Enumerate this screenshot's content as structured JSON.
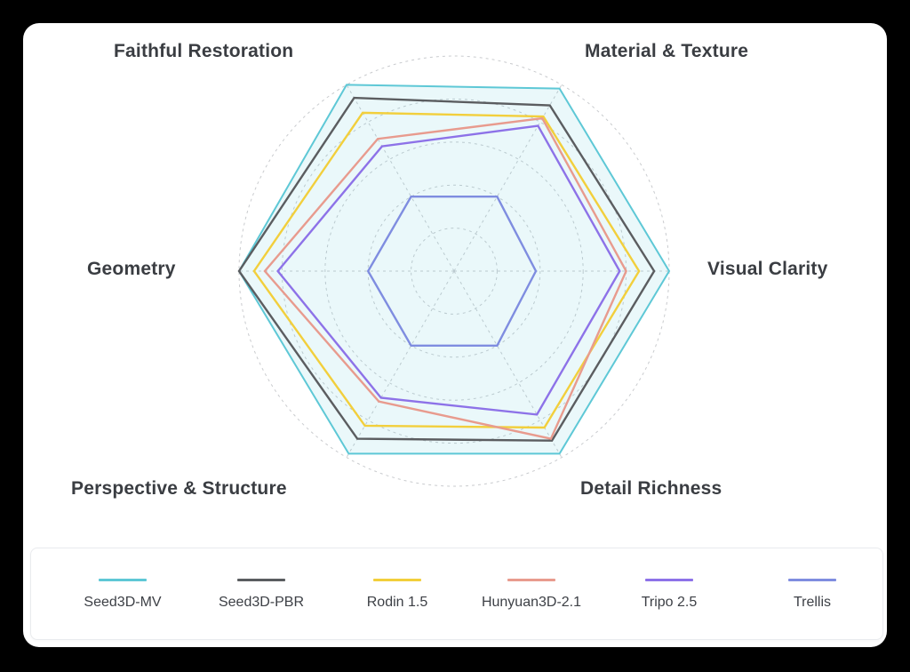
{
  "chart_data": {
    "type": "radar",
    "axes": [
      "Visual Clarity",
      "Detail Richness",
      "Perspective & Structure",
      "Geometry",
      "Faithful Restoration",
      "Material & Texture"
    ],
    "rmax": 1.0,
    "grid_levels": [
      0.2,
      0.4,
      0.6,
      0.8,
      1.0
    ],
    "series": [
      {
        "name": "Seed3D-MV",
        "color": "#5ec8d6",
        "fill": true,
        "values": [
          1.0,
          0.98,
          0.98,
          1.0,
          1.0,
          0.98
        ]
      },
      {
        "name": "Seed3D-PBR",
        "color": "#5b5d60",
        "values": [
          0.93,
          0.91,
          0.9,
          1.0,
          0.93,
          0.89
        ]
      },
      {
        "name": "Rodin 1.5",
        "color": "#f2cf3c",
        "values": [
          0.86,
          0.84,
          0.83,
          0.93,
          0.85,
          0.83
        ]
      },
      {
        "name": "Hunyuan3D-2.1",
        "color": "#e89b8e",
        "values": [
          0.8,
          0.9,
          0.7,
          0.88,
          0.71,
          0.82
        ]
      },
      {
        "name": "Tripo 2.5",
        "color": "#8d72e8",
        "values": [
          0.77,
          0.77,
          0.68,
          0.82,
          0.67,
          0.78
        ]
      },
      {
        "name": "Trellis",
        "color": "#7f8de0",
        "values": [
          0.38,
          0.4,
          0.4,
          0.4,
          0.4,
          0.4
        ]
      }
    ]
  },
  "legend": {
    "items": [
      {
        "label": "Seed3D-MV",
        "color": "#5ec8d6"
      },
      {
        "label": "Seed3D-PBR",
        "color": "#5b5d60"
      },
      {
        "label": "Rodin 1.5",
        "color": "#f2cf3c"
      },
      {
        "label": "Hunyuan3D-2.1",
        "color": "#e89b8e"
      },
      {
        "label": "Tripo 2.5",
        "color": "#8d72e8"
      },
      {
        "label": "Trellis",
        "color": "#7f8de0"
      }
    ]
  }
}
